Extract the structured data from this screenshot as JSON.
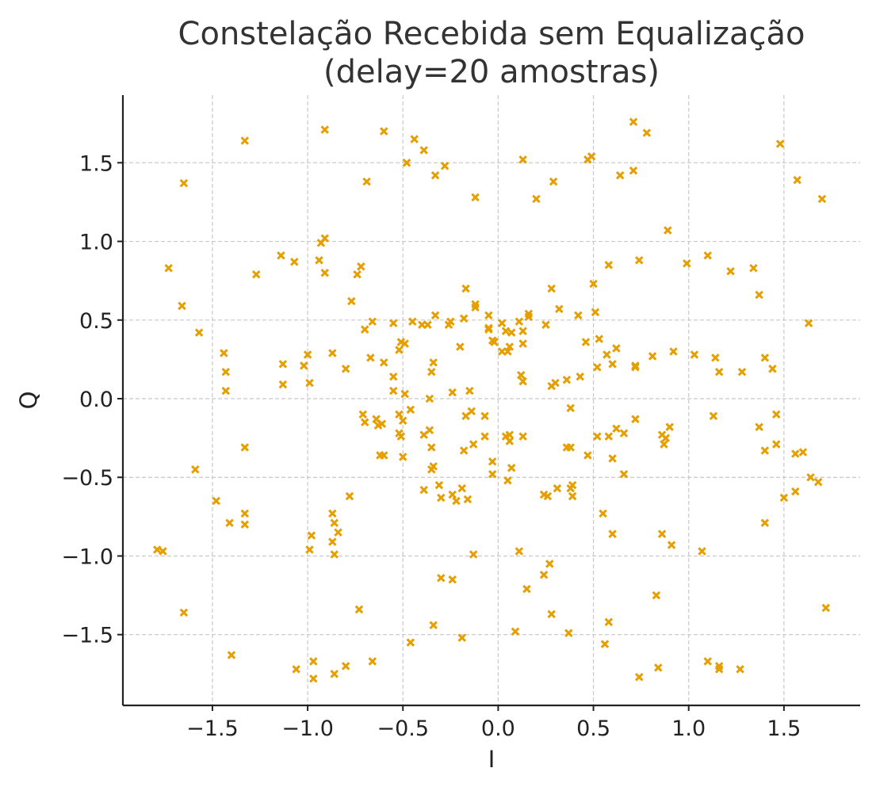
{
  "chart_data": {
    "type": "scatter",
    "title_line1": "Constelação Recebida sem Equalização",
    "title_line2": "(delay=20 amostras)",
    "xlabel": "I",
    "ylabel": "Q",
    "xlim": [
      -1.97,
      1.9
    ],
    "ylim": [
      -1.95,
      1.93
    ],
    "xticks": [
      -1.5,
      -1.0,
      -0.5,
      0.0,
      0.5,
      1.0,
      1.5
    ],
    "xtick_labels": [
      "−1.5",
      "−1.0",
      "−0.5",
      "0.0",
      "0.5",
      "1.0",
      "1.5"
    ],
    "yticks": [
      -1.5,
      -1.0,
      -0.5,
      0.0,
      0.5,
      1.0,
      1.5
    ],
    "ytick_labels": [
      "−1.5",
      "−1.0",
      "−0.5",
      "0.0",
      "0.5",
      "1.0",
      "1.5"
    ],
    "grid": true,
    "marker": "x",
    "color": "#E69F00",
    "points": [
      [
        -0.91,
        1.71
      ],
      [
        -0.6,
        1.7
      ],
      [
        -1.33,
        1.64
      ],
      [
        -0.44,
        1.65
      ],
      [
        -0.39,
        1.58
      ],
      [
        -0.48,
        1.5
      ],
      [
        -0.28,
        1.48
      ],
      [
        -0.33,
        1.42
      ],
      [
        -0.69,
        1.38
      ],
      [
        -1.65,
        1.37
      ],
      [
        -0.12,
        1.28
      ],
      [
        0.13,
        1.52
      ],
      [
        0.2,
        1.27
      ],
      [
        0.29,
        1.38
      ],
      [
        0.47,
        1.52
      ],
      [
        0.49,
        1.54
      ],
      [
        0.71,
        1.76
      ],
      [
        0.78,
        1.69
      ],
      [
        0.71,
        1.45
      ],
      [
        0.64,
        1.42
      ],
      [
        1.48,
        1.62
      ],
      [
        1.57,
        1.39
      ],
      [
        1.7,
        1.27
      ],
      [
        -0.91,
        1.02
      ],
      [
        -0.93,
        0.99
      ],
      [
        -0.94,
        0.88
      ],
      [
        -0.91,
        0.8
      ],
      [
        -1.07,
        0.87
      ],
      [
        -1.14,
        0.91
      ],
      [
        -1.27,
        0.79
      ],
      [
        -1.73,
        0.83
      ],
      [
        -1.66,
        0.59
      ],
      [
        -1.57,
        0.42
      ],
      [
        -0.72,
        0.84
      ],
      [
        -0.74,
        0.79
      ],
      [
        -0.77,
        0.62
      ],
      [
        0.89,
        1.07
      ],
      [
        0.74,
        0.88
      ],
      [
        0.58,
        0.85
      ],
      [
        0.99,
        0.86
      ],
      [
        1.1,
        0.91
      ],
      [
        1.22,
        0.81
      ],
      [
        1.34,
        0.83
      ],
      [
        1.37,
        0.66
      ],
      [
        1.63,
        0.48
      ],
      [
        0.28,
        0.7
      ],
      [
        0.5,
        0.73
      ],
      [
        -0.7,
        0.44
      ],
      [
        -0.66,
        0.49
      ],
      [
        -0.55,
        0.48
      ],
      [
        -0.45,
        0.49
      ],
      [
        -0.4,
        0.47
      ],
      [
        -0.37,
        0.47
      ],
      [
        -0.33,
        0.53
      ],
      [
        -0.26,
        0.47
      ],
      [
        -0.25,
        0.49
      ],
      [
        -0.18,
        0.51
      ],
      [
        -0.17,
        0.7
      ],
      [
        -0.12,
        0.6
      ],
      [
        -0.12,
        0.58
      ],
      [
        -0.05,
        0.53
      ],
      [
        -0.05,
        0.45
      ],
      [
        -0.05,
        0.44
      ],
      [
        0.02,
        0.48
      ],
      [
        0.04,
        0.43
      ],
      [
        0.07,
        0.42
      ],
      [
        0.11,
        0.49
      ],
      [
        0.13,
        0.43
      ],
      [
        0.16,
        0.52
      ],
      [
        0.16,
        0.54
      ],
      [
        0.25,
        0.47
      ],
      [
        0.32,
        0.57
      ],
      [
        0.42,
        0.53
      ],
      [
        0.51,
        0.55
      ],
      [
        0.53,
        0.38
      ],
      [
        0.46,
        0.36
      ],
      [
        0.57,
        0.28
      ],
      [
        0.62,
        0.32
      ],
      [
        0.6,
        0.22
      ],
      [
        0.72,
        0.2
      ],
      [
        0.81,
        0.27
      ],
      [
        0.92,
        0.3
      ],
      [
        1.03,
        0.28
      ],
      [
        1.14,
        0.26
      ],
      [
        1.16,
        0.17
      ],
      [
        1.28,
        0.17
      ],
      [
        1.4,
        0.26
      ],
      [
        1.44,
        0.19
      ],
      [
        -1.44,
        0.29
      ],
      [
        -1.43,
        0.17
      ],
      [
        -1.43,
        0.05
      ],
      [
        -1.13,
        0.22
      ],
      [
        -1.13,
        0.09
      ],
      [
        -1.0,
        0.28
      ],
      [
        -1.02,
        0.21
      ],
      [
        -0.99,
        0.1
      ],
      [
        -0.87,
        0.29
      ],
      [
        -0.8,
        0.19
      ],
      [
        -0.67,
        0.26
      ],
      [
        -0.6,
        0.23
      ],
      [
        -0.55,
        0.14
      ],
      [
        -0.55,
        0.05
      ],
      [
        -0.52,
        0.31
      ],
      [
        -0.51,
        0.36
      ],
      [
        -0.49,
        0.35
      ],
      [
        -0.35,
        0.17
      ],
      [
        -0.34,
        0.23
      ],
      [
        -0.2,
        0.33
      ],
      [
        -0.24,
        0.04
      ],
      [
        -0.15,
        0.05
      ],
      [
        -0.03,
        0.37
      ],
      [
        -0.02,
        0.36
      ],
      [
        0.02,
        0.3
      ],
      [
        0.05,
        0.3
      ],
      [
        0.06,
        0.33
      ],
      [
        0.13,
        0.35
      ],
      [
        0.12,
        0.15
      ],
      [
        0.13,
        0.11
      ],
      [
        0.28,
        0.08
      ],
      [
        0.3,
        0.1
      ],
      [
        0.36,
        0.12
      ],
      [
        0.43,
        0.14
      ],
      [
        0.52,
        0.2
      ],
      [
        0.72,
        0.21
      ],
      [
        -0.49,
        0.03
      ],
      [
        -0.36,
        0.0
      ],
      [
        -0.71,
        -0.1
      ],
      [
        -0.7,
        -0.15
      ],
      [
        -0.64,
        -0.13
      ],
      [
        -0.63,
        -0.17
      ],
      [
        -0.61,
        -0.16
      ],
      [
        -0.52,
        -0.1
      ],
      [
        -0.52,
        -0.22
      ],
      [
        -0.51,
        -0.24
      ],
      [
        -0.5,
        -0.14
      ],
      [
        -0.46,
        -0.07
      ],
      [
        -0.39,
        -0.23
      ],
      [
        -0.36,
        -0.2
      ],
      [
        -0.17,
        -0.11
      ],
      [
        -0.14,
        -0.08
      ],
      [
        -0.07,
        -0.11
      ],
      [
        -0.13,
        -0.29
      ],
      [
        -0.18,
        -0.33
      ],
      [
        -0.07,
        -0.24
      ],
      [
        0.04,
        -0.24
      ],
      [
        0.06,
        -0.23
      ],
      [
        0.06,
        -0.27
      ],
      [
        0.13,
        -0.24
      ],
      [
        0.38,
        -0.06
      ],
      [
        0.36,
        -0.31
      ],
      [
        0.38,
        -0.31
      ],
      [
        0.47,
        -0.36
      ],
      [
        0.52,
        -0.24
      ],
      [
        0.58,
        -0.24
      ],
      [
        0.62,
        -0.19
      ],
      [
        0.66,
        -0.22
      ],
      [
        0.6,
        -0.38
      ],
      [
        0.66,
        -0.48
      ],
      [
        0.72,
        -0.13
      ],
      [
        0.86,
        -0.23
      ],
      [
        0.88,
        -0.25
      ],
      [
        0.87,
        -0.29
      ],
      [
        0.9,
        -0.18
      ],
      [
        1.13,
        -0.11
      ],
      [
        1.37,
        -0.18
      ],
      [
        1.4,
        -0.33
      ],
      [
        1.46,
        -0.29
      ],
      [
        1.46,
        -0.1
      ],
      [
        1.56,
        -0.35
      ],
      [
        1.6,
        -0.34
      ],
      [
        1.64,
        -0.5
      ],
      [
        1.68,
        -0.53
      ],
      [
        1.56,
        -0.59
      ],
      [
        1.5,
        -0.63
      ],
      [
        -1.33,
        -0.31
      ],
      [
        -1.59,
        -0.45
      ],
      [
        -0.62,
        -0.36
      ],
      [
        -0.6,
        -0.36
      ],
      [
        -0.5,
        -0.37
      ],
      [
        -0.35,
        -0.31
      ],
      [
        -0.34,
        -0.43
      ],
      [
        -0.35,
        -0.45
      ],
      [
        -0.39,
        -0.58
      ],
      [
        -0.31,
        -0.55
      ],
      [
        -0.3,
        -0.63
      ],
      [
        -0.24,
        -0.61
      ],
      [
        -0.22,
        -0.65
      ],
      [
        -0.19,
        -0.57
      ],
      [
        -0.16,
        -0.64
      ],
      [
        -0.03,
        -0.4
      ],
      [
        -0.03,
        -0.48
      ],
      [
        0.05,
        -0.52
      ],
      [
        0.07,
        -0.44
      ],
      [
        0.24,
        -0.61
      ],
      [
        0.26,
        -0.62
      ],
      [
        0.31,
        -0.57
      ],
      [
        0.38,
        -0.57
      ],
      [
        0.39,
        -0.55
      ],
      [
        0.39,
        -0.62
      ],
      [
        -0.78,
        -0.62
      ],
      [
        -1.48,
        -0.65
      ],
      [
        -1.41,
        -0.79
      ],
      [
        -1.33,
        -0.73
      ],
      [
        -1.33,
        -0.8
      ],
      [
        -0.87,
        -0.73
      ],
      [
        -0.86,
        -0.79
      ],
      [
        -0.84,
        -0.85
      ],
      [
        -0.87,
        -0.91
      ],
      [
        -0.86,
        -0.99
      ],
      [
        -0.98,
        -0.87
      ],
      [
        -0.99,
        -0.96
      ],
      [
        -1.79,
        -0.96
      ],
      [
        -1.76,
        -0.97
      ],
      [
        -0.13,
        -0.99
      ],
      [
        0.11,
        -0.97
      ],
      [
        0.55,
        -0.73
      ],
      [
        0.6,
        -0.86
      ],
      [
        0.86,
        -0.86
      ],
      [
        0.91,
        -0.93
      ],
      [
        1.07,
        -0.97
      ],
      [
        1.4,
        -0.79
      ],
      [
        -1.65,
        -1.36
      ],
      [
        -0.73,
        -1.34
      ],
      [
        -0.3,
        -1.14
      ],
      [
        -0.24,
        -1.15
      ],
      [
        -0.46,
        -1.55
      ],
      [
        -0.34,
        -1.44
      ],
      [
        -0.19,
        -1.52
      ],
      [
        0.09,
        -1.48
      ],
      [
        0.15,
        -1.21
      ],
      [
        0.24,
        -1.12
      ],
      [
        0.27,
        -1.05
      ],
      [
        0.28,
        -1.37
      ],
      [
        0.37,
        -1.49
      ],
      [
        0.56,
        -1.56
      ],
      [
        0.58,
        -1.42
      ],
      [
        0.74,
        -1.77
      ],
      [
        0.83,
        -1.25
      ],
      [
        0.84,
        -1.71
      ],
      [
        1.1,
        -1.67
      ],
      [
        1.16,
        -1.7
      ],
      [
        1.16,
        -1.72
      ],
      [
        1.27,
        -1.72
      ],
      [
        1.72,
        -1.33
      ],
      [
        -1.4,
        -1.63
      ],
      [
        -1.06,
        -1.72
      ],
      [
        -0.97,
        -1.67
      ],
      [
        -0.97,
        -1.78
      ],
      [
        -0.86,
        -1.75
      ],
      [
        -0.8,
        -1.7
      ],
      [
        -0.66,
        -1.67
      ]
    ]
  }
}
